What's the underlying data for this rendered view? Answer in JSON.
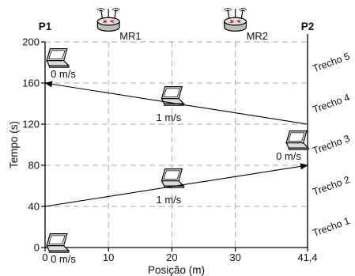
{
  "chart_data": {
    "type": "line",
    "title": "",
    "xlabel": "Posição (m)",
    "ylabel": "Tempo (s)",
    "xlim": [
      0,
      41.4
    ],
    "ylim": [
      0,
      200
    ],
    "x_ticks": [
      {
        "value": 0,
        "label": "0"
      },
      {
        "value": 10,
        "label": "10"
      },
      {
        "value": 20,
        "label": "20"
      },
      {
        "value": 30,
        "label": "30"
      },
      {
        "value": 41.4,
        "label": "41,4"
      }
    ],
    "y_ticks": [
      {
        "value": 0,
        "label": "0"
      },
      {
        "value": 40,
        "label": "40"
      },
      {
        "value": 80,
        "label": "80"
      },
      {
        "value": 120,
        "label": "120"
      },
      {
        "value": 160,
        "label": "160"
      },
      {
        "value": 200,
        "label": "200"
      }
    ],
    "grid": true,
    "endpoints": [
      {
        "label": "P1",
        "x": 0
      },
      {
        "label": "P2",
        "x": 41.4
      }
    ],
    "routers": [
      {
        "label": "MR1",
        "x": 10,
        "icon": "router-icon"
      },
      {
        "label": "MR2",
        "x": 30,
        "icon": "router-icon"
      }
    ],
    "movements": [
      {
        "from": [
          0,
          40
        ],
        "to": [
          41.4,
          80
        ],
        "speed_label": "1 m/s",
        "speed_at": [
          20,
          60
        ]
      },
      {
        "from": [
          41.4,
          120
        ],
        "to": [
          0,
          160
        ],
        "speed_label": "1 m/s",
        "speed_at": [
          20,
          140
        ]
      }
    ],
    "stops": [
      {
        "x": 0,
        "y": 0,
        "speed_label": "0 m/s"
      },
      {
        "x": 41.4,
        "y": 100,
        "speed_label": "0 m/s"
      },
      {
        "x": 0,
        "y": 180,
        "speed_label": "0 m/s"
      }
    ],
    "segments": [
      {
        "label": "Trecho 1",
        "y_range": [
          0,
          40
        ]
      },
      {
        "label": "Trecho 2",
        "y_range": [
          40,
          80
        ]
      },
      {
        "label": "Trecho 3",
        "y_range": [
          80,
          120
        ]
      },
      {
        "label": "Trecho 4",
        "y_range": [
          120,
          160
        ]
      },
      {
        "label": "Trecho 5",
        "y_range": [
          160,
          200
        ]
      }
    ]
  }
}
